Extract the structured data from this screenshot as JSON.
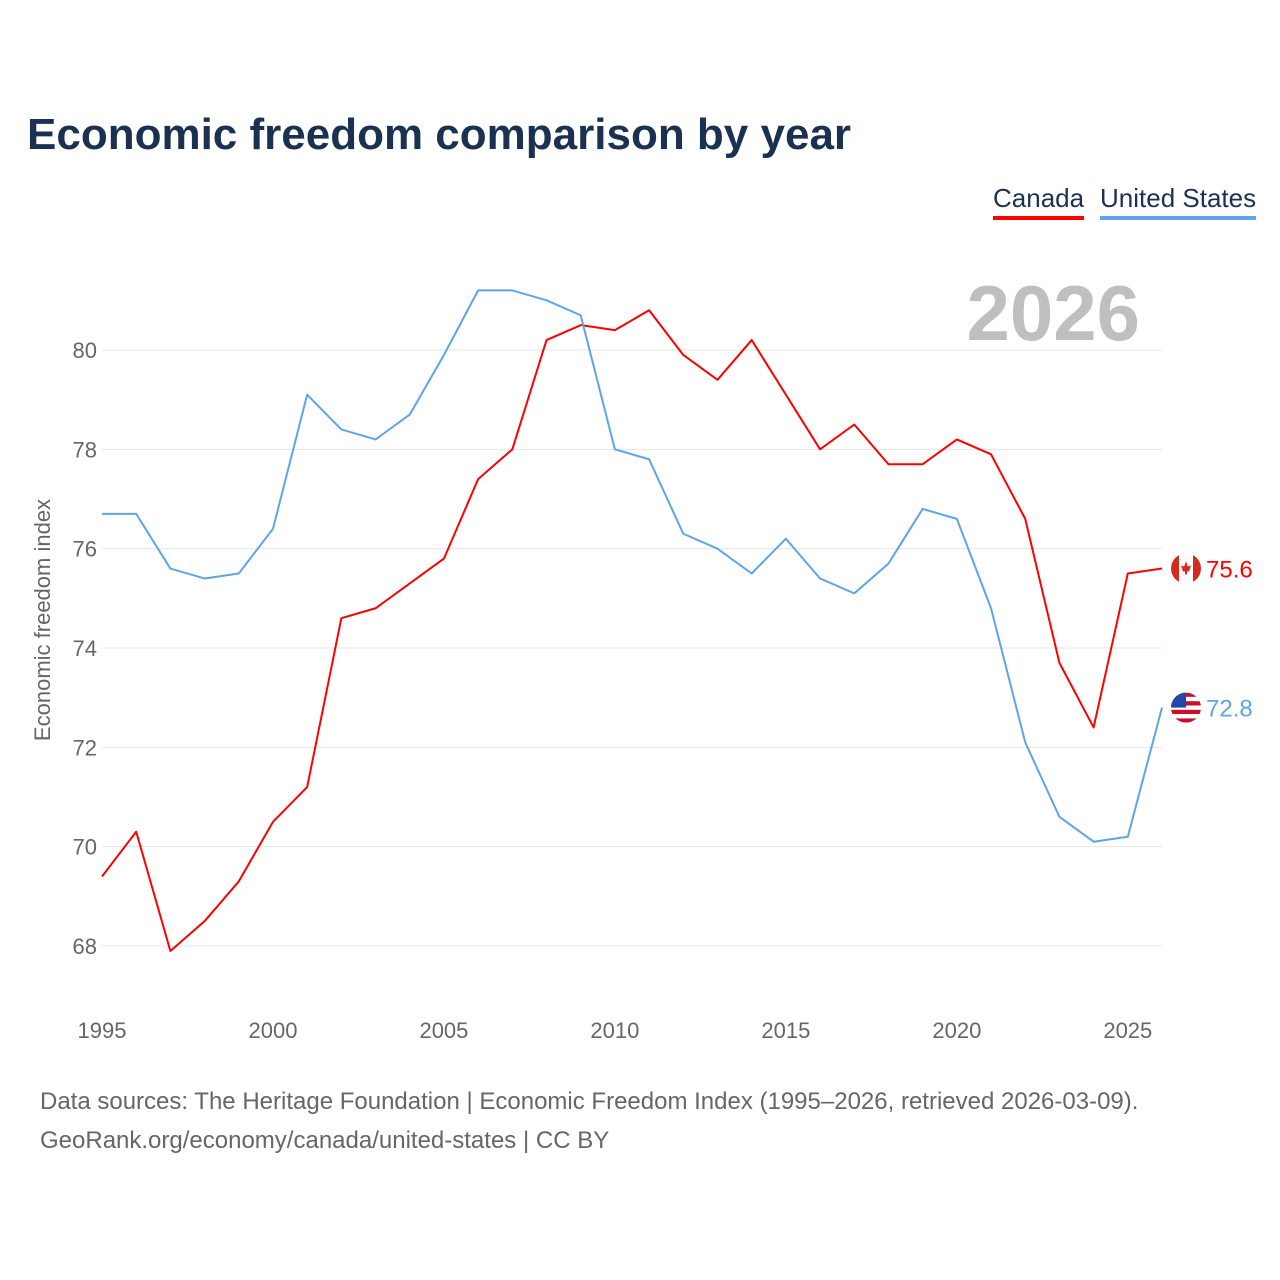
{
  "chart_data": {
    "type": "line",
    "title": "Economic freedom comparison by year",
    "xlabel": "",
    "ylabel": "Economic freedom index",
    "xlim": [
      1995,
      2026
    ],
    "ylim": [
      67,
      81.5
    ],
    "yticks": [
      68,
      70,
      72,
      74,
      76,
      78,
      80
    ],
    "xticks": [
      1995,
      2000,
      2005,
      2010,
      2015,
      2020,
      2025
    ],
    "grid": true,
    "legend_position": "top-right",
    "year_watermark": "2026",
    "x": [
      1995,
      1996,
      1997,
      1998,
      1999,
      2000,
      2001,
      2002,
      2003,
      2004,
      2005,
      2006,
      2007,
      2008,
      2009,
      2010,
      2011,
      2012,
      2013,
      2014,
      2015,
      2016,
      2017,
      2018,
      2019,
      2020,
      2021,
      2022,
      2023,
      2024,
      2025,
      2026
    ],
    "series": [
      {
        "name": "Canada",
        "color": "#ff0000",
        "end_label": "75.6",
        "flag": "canada-flag",
        "values": [
          69.4,
          70.3,
          67.9,
          68.5,
          69.3,
          70.5,
          71.2,
          74.6,
          74.8,
          75.3,
          75.8,
          77.4,
          78.0,
          80.2,
          80.5,
          80.4,
          80.8,
          79.9,
          79.4,
          80.2,
          79.1,
          78.0,
          78.5,
          77.7,
          77.7,
          78.2,
          77.9,
          76.6,
          73.7,
          72.4,
          75.5,
          75.6
        ]
      },
      {
        "name": "United States",
        "color": "#5ea4e8",
        "end_label": "72.8",
        "flag": "usa-flag",
        "values": [
          76.7,
          76.7,
          75.6,
          75.4,
          75.5,
          76.4,
          79.1,
          78.4,
          78.2,
          78.7,
          79.9,
          81.2,
          81.2,
          81.0,
          80.7,
          78.0,
          77.8,
          76.3,
          76.0,
          75.5,
          76.2,
          75.4,
          75.1,
          75.7,
          76.8,
          76.6,
          74.8,
          72.1,
          70.6,
          70.1,
          70.2,
          72.8
        ]
      }
    ]
  },
  "footer": {
    "line1": "Data sources: The Heritage Foundation | Economic Freedom Index (1995–2026, retrieved 2026-03-09).",
    "line2": "GeoRank.org/economy/canada/united-states | CC BY"
  }
}
